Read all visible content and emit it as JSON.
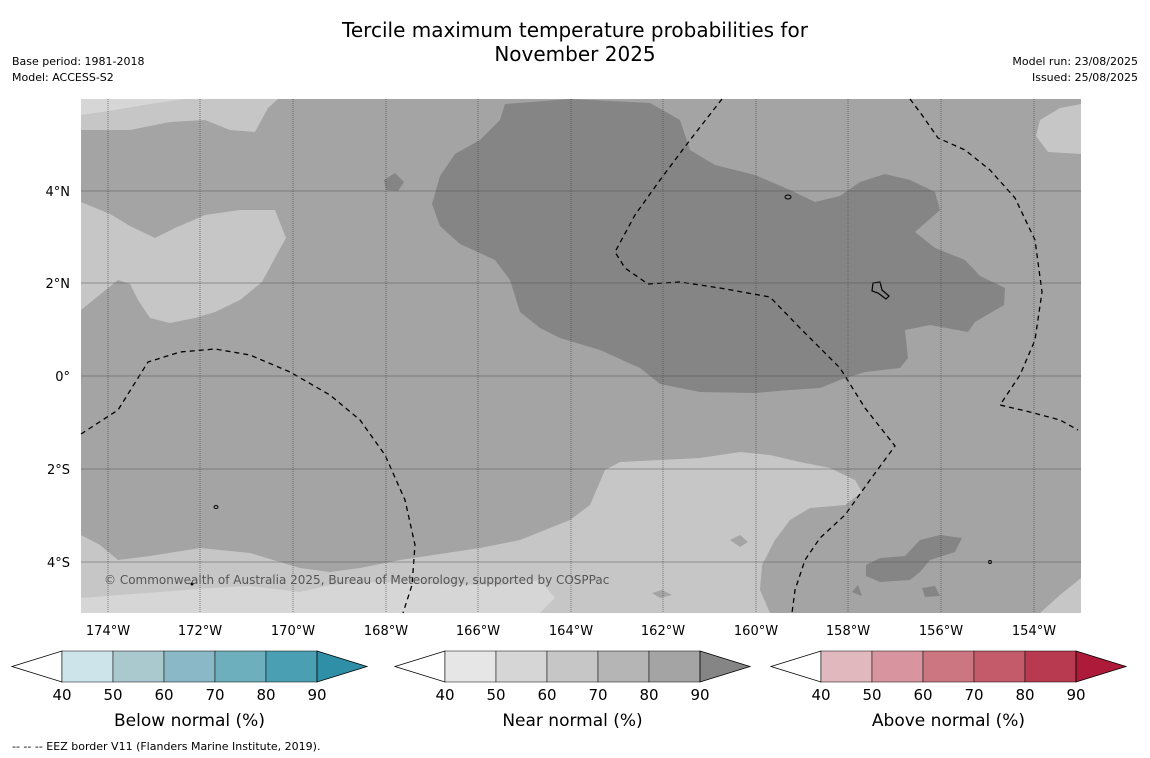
{
  "title_line1": "Tercile maximum temperature probabilities for",
  "title_line2": "November 2025",
  "base_period": "Base period: 1981-2018",
  "model": "Model: ACCESS-S2",
  "model_run": "Model run: 23/08/2025",
  "issued": "Issued: 25/08/2025",
  "copyright": "© Commonwealth of Australia 2025, Bureau of Meteorology, supported by COSPPac",
  "footnote": "--  --  -- EEZ border V11 (Flanders Marine Institute, 2019).",
  "map": {
    "lon_labels": [
      "174°W",
      "172°W",
      "170°W",
      "168°W",
      "166°W",
      "164°W",
      "162°W",
      "160°W",
      "158°W",
      "156°W",
      "154°W"
    ],
    "lat_labels": [
      "4°N",
      "2°N",
      "0°",
      "2°S",
      "4°S"
    ]
  },
  "colorbars": [
    {
      "title": "Below normal (%)",
      "ticks": [
        "40",
        "50",
        "60",
        "70",
        "80",
        "90"
      ],
      "colors": [
        "#cce4ea",
        "#a9c9cf",
        "#8bb8c6",
        "#6eafbe",
        "#4aa0b2",
        "#2e8fa6"
      ]
    },
    {
      "title": "Near normal (%)",
      "ticks": [
        "40",
        "50",
        "60",
        "70",
        "80",
        "90"
      ],
      "colors": [
        "#e6e6e6",
        "#d6d6d6",
        "#c6c6c6",
        "#b5b5b5",
        "#a4a4a4",
        "#858585"
      ]
    },
    {
      "title": "Above normal (%)",
      "ticks": [
        "40",
        "50",
        "60",
        "70",
        "80",
        "90"
      ],
      "colors": [
        "#e2b8bf",
        "#d8959f",
        "#cc7681",
        "#c35b6a",
        "#b83a50",
        "#ad1a3a"
      ]
    }
  ]
}
